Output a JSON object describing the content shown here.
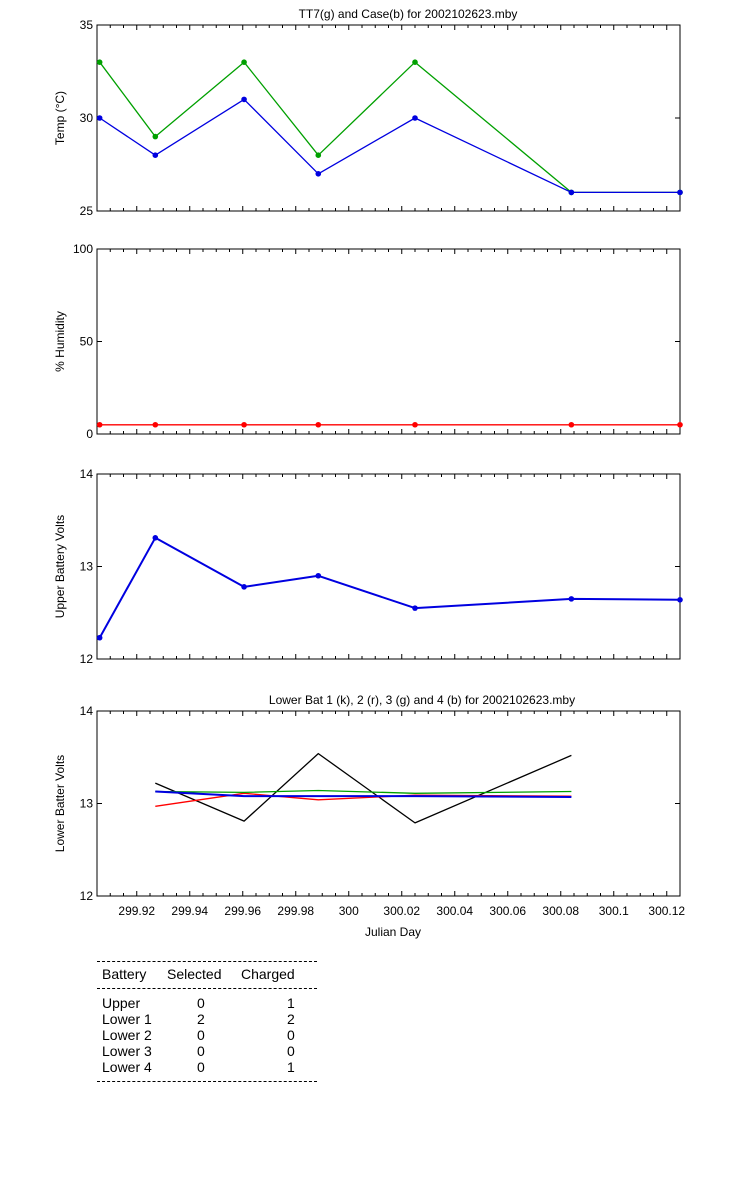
{
  "chart_data": [
    {
      "type": "line",
      "title": "TT7(g) and Case(b) for 2002102623.mby",
      "xlabel": "",
      "ylabel": "Temp  (°C)",
      "xlim": [
        299.905,
        300.125
      ],
      "ylim": [
        25,
        35
      ],
      "yticks": [
        25,
        30,
        35
      ],
      "grid": false,
      "series": [
        {
          "color": "#00a000",
          "markers": true,
          "x": [
            299.906,
            299.927,
            299.9605,
            299.9885,
            300.025,
            300.084,
            300.125
          ],
          "y": [
            33,
            29,
            33,
            28,
            33,
            26,
            26
          ]
        },
        {
          "color": "#0000e0",
          "markers": true,
          "x": [
            299.906,
            299.927,
            299.9605,
            299.9885,
            300.025,
            300.084,
            300.125
          ],
          "y": [
            30,
            28,
            31,
            27,
            30,
            26,
            26
          ]
        }
      ]
    },
    {
      "type": "line",
      "title": "",
      "xlabel": "",
      "ylabel": "% Humidity",
      "xlim": [
        299.905,
        300.125
      ],
      "ylim": [
        0,
        100
      ],
      "yticks": [
        0,
        50,
        100
      ],
      "grid": false,
      "series": [
        {
          "color": "#ff0000",
          "markers": true,
          "x": [
            299.906,
            299.927,
            299.9605,
            299.9885,
            300.025,
            300.084,
            300.125
          ],
          "y": [
            5,
            5,
            5,
            5,
            5,
            5,
            5
          ]
        }
      ]
    },
    {
      "type": "line",
      "title": "",
      "xlabel": "",
      "ylabel": "Upper Battery Volts",
      "xlim": [
        299.905,
        300.125
      ],
      "ylim": [
        12,
        14
      ],
      "yticks": [
        12,
        13,
        14
      ],
      "grid": false,
      "series": [
        {
          "color": "#0000e0",
          "markers": true,
          "thick": true,
          "x": [
            299.906,
            299.927,
            299.9605,
            299.9885,
            300.025,
            300.084,
            300.125
          ],
          "y": [
            12.23,
            13.31,
            12.78,
            12.9,
            12.55,
            12.65,
            12.64
          ]
        }
      ]
    },
    {
      "type": "line",
      "title": "Lower Bat 1 (k), 2 (r), 3 (g) and 4 (b) for 2002102623.mby",
      "xlabel": "Julian Day",
      "ylabel": "Lower Batter Volts",
      "xlim": [
        299.905,
        300.125
      ],
      "ylim": [
        12,
        14
      ],
      "yticks": [
        12,
        13,
        14
      ],
      "xticks": [
        "299.92",
        "299.94",
        "299.96",
        "299.98",
        "300",
        "300.02",
        "300.04",
        "300.06",
        "300.08",
        "300.1",
        "300.12"
      ],
      "grid": false,
      "series": [
        {
          "color": "#000000",
          "markers": false,
          "x": [
            299.927,
            299.9605,
            299.9885,
            300.025,
            300.084
          ],
          "y": [
            13.22,
            12.81,
            13.54,
            12.79,
            13.52
          ]
        },
        {
          "color": "#ff0000",
          "markers": false,
          "x": [
            299.927,
            299.9605,
            299.9885,
            300.025,
            300.084
          ],
          "y": [
            12.97,
            13.11,
            13.04,
            13.09,
            13.08
          ]
        },
        {
          "color": "#00a000",
          "markers": false,
          "x": [
            299.927,
            299.9605,
            299.9885,
            300.025,
            300.084
          ],
          "y": [
            13.13,
            13.12,
            13.14,
            13.11,
            13.13
          ]
        },
        {
          "color": "#0000e0",
          "markers": false,
          "thick": true,
          "x": [
            299.927,
            299.9605,
            299.9885,
            300.025,
            300.084
          ],
          "y": [
            13.13,
            13.08,
            13.08,
            13.08,
            13.07
          ]
        }
      ]
    }
  ],
  "battery_table": {
    "headers": [
      "Battery",
      "Selected",
      "Charged"
    ],
    "rows": [
      {
        "battery": "Upper",
        "selected": "0",
        "charged": "1"
      },
      {
        "battery": "Lower 1",
        "selected": "2",
        "charged": "2"
      },
      {
        "battery": "Lower 2",
        "selected": "0",
        "charged": "0"
      },
      {
        "battery": "Lower 3",
        "selected": "0",
        "charged": "0"
      },
      {
        "battery": "Lower 4",
        "selected": "0",
        "charged": "1"
      }
    ]
  }
}
